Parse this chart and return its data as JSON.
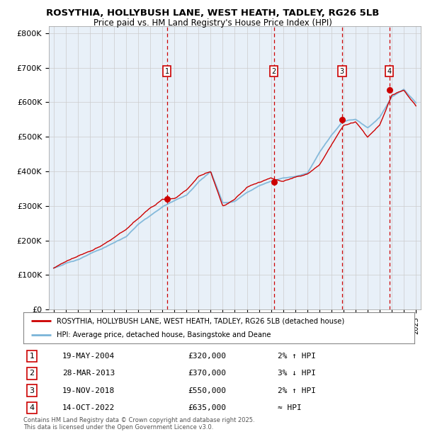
{
  "title_line1": "ROSYTHIA, HOLLYBUSH LANE, WEST HEATH, TADLEY, RG26 5LB",
  "title_line2": "Price paid vs. HM Land Registry's House Price Index (HPI)",
  "background_color": "#e8f0f8",
  "legend_line1": "ROSYTHIA, HOLLYBUSH LANE, WEST HEATH, TADLEY, RG26 5LB (detached house)",
  "legend_line2": "HPI: Average price, detached house, Basingstoke and Deane",
  "transactions": [
    {
      "num": 1,
      "date": "19-MAY-2004",
      "price": "£320,000",
      "change": "2% ↑ HPI",
      "year": 2004.38
    },
    {
      "num": 2,
      "date": "28-MAR-2013",
      "price": "£370,000",
      "change": "3% ↓ HPI",
      "year": 2013.23
    },
    {
      "num": 3,
      "date": "19-NOV-2018",
      "price": "£550,000",
      "change": "2% ↑ HPI",
      "year": 2018.88
    },
    {
      "num": 4,
      "date": "14-OCT-2022",
      "price": "£635,000",
      "change": "≈ HPI",
      "year": 2022.79
    }
  ],
  "transaction_values": [
    320000,
    370000,
    550000,
    635000
  ],
  "ylim": [
    0,
    820000
  ],
  "yticks": [
    0,
    100000,
    200000,
    300000,
    400000,
    500000,
    600000,
    700000,
    800000
  ],
  "ytick_labels": [
    "£0",
    "£100K",
    "£200K",
    "£300K",
    "£400K",
    "£500K",
    "£600K",
    "£700K",
    "£800K"
  ],
  "hpi_color": "#7ab4d8",
  "price_color": "#cc0000",
  "dashed_color": "#cc0000",
  "grid_color": "#cccccc",
  "footer_text": "Contains HM Land Registry data © Crown copyright and database right 2025.\nThis data is licensed under the Open Government Licence v3.0.",
  "hpi_knots_x": [
    0,
    2,
    4,
    6,
    7,
    8,
    9,
    10,
    11,
    12,
    13,
    14,
    15,
    16,
    17,
    18,
    19,
    20,
    21,
    22,
    23,
    24,
    25,
    26,
    27,
    28,
    29,
    30
  ],
  "hpi_knots_y": [
    120000,
    145000,
    175000,
    210000,
    245000,
    270000,
    295000,
    315000,
    330000,
    370000,
    400000,
    310000,
    315000,
    340000,
    360000,
    375000,
    385000,
    390000,
    400000,
    460000,
    510000,
    550000,
    555000,
    530000,
    560000,
    620000,
    640000,
    600000
  ],
  "price_knots_x": [
    0,
    2,
    4,
    6,
    7,
    8,
    9,
    10,
    11,
    12,
    13,
    14,
    15,
    16,
    17,
    18,
    19,
    20,
    21,
    22,
    23,
    24,
    25,
    26,
    27,
    28,
    29,
    30
  ],
  "price_knots_y": [
    120000,
    155000,
    185000,
    230000,
    260000,
    290000,
    320000,
    325000,
    350000,
    390000,
    405000,
    305000,
    325000,
    360000,
    375000,
    390000,
    380000,
    395000,
    405000,
    430000,
    490000,
    545000,
    555000,
    510000,
    545000,
    630000,
    645000,
    600000
  ]
}
